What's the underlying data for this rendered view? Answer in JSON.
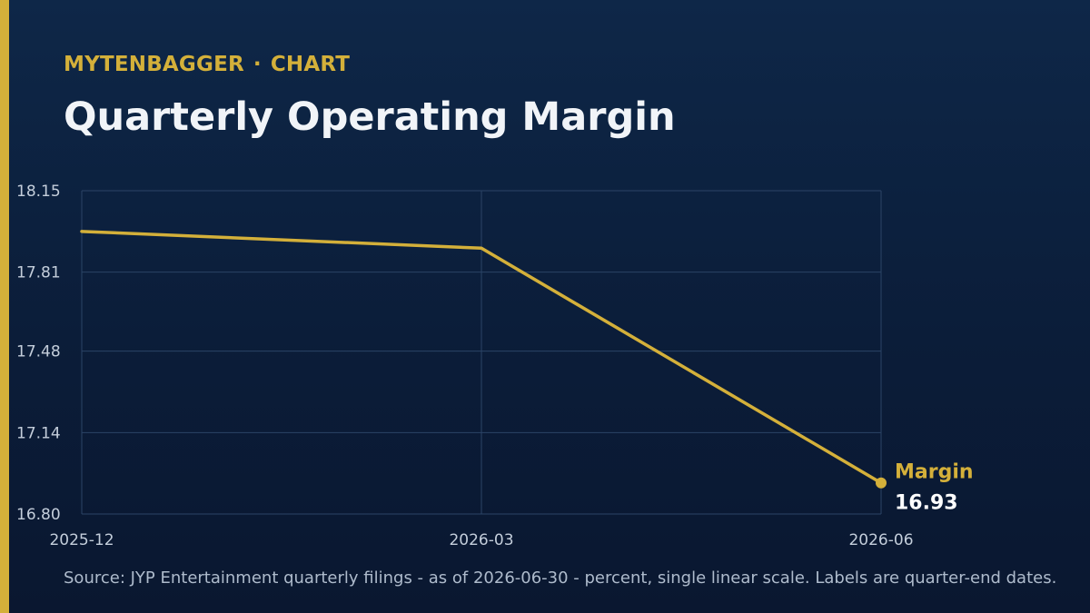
{
  "header": {
    "brand": "MYTENBAGGER",
    "separator": "·",
    "section": "CHART",
    "title": "Quarterly Operating Margin"
  },
  "colors": {
    "background": "#0b1d39",
    "accent": "#d4b03a",
    "line": "#d4b03a",
    "grid": "#2b4466",
    "tick_text": "#c4cedb",
    "value_text": "#ffffff"
  },
  "chart_data": {
    "type": "line",
    "x": [
      "2025-12",
      "2026-03",
      "2026-06"
    ],
    "series": [
      {
        "name": "Margin",
        "values": [
          17.98,
          17.91,
          16.93
        ]
      }
    ],
    "yticks": [
      "18.15",
      "17.81",
      "17.48",
      "17.14",
      "16.80"
    ],
    "ylim": [
      16.8,
      18.15
    ],
    "grid": true,
    "end_label": {
      "series": "Margin",
      "value": "16.93"
    },
    "title": "",
    "xlabel": "",
    "ylabel": ""
  },
  "footer": {
    "source": "Source: JYP Entertainment quarterly filings - as of 2026-06-30 - percent, single linear scale. Labels are quarter-end dates."
  }
}
